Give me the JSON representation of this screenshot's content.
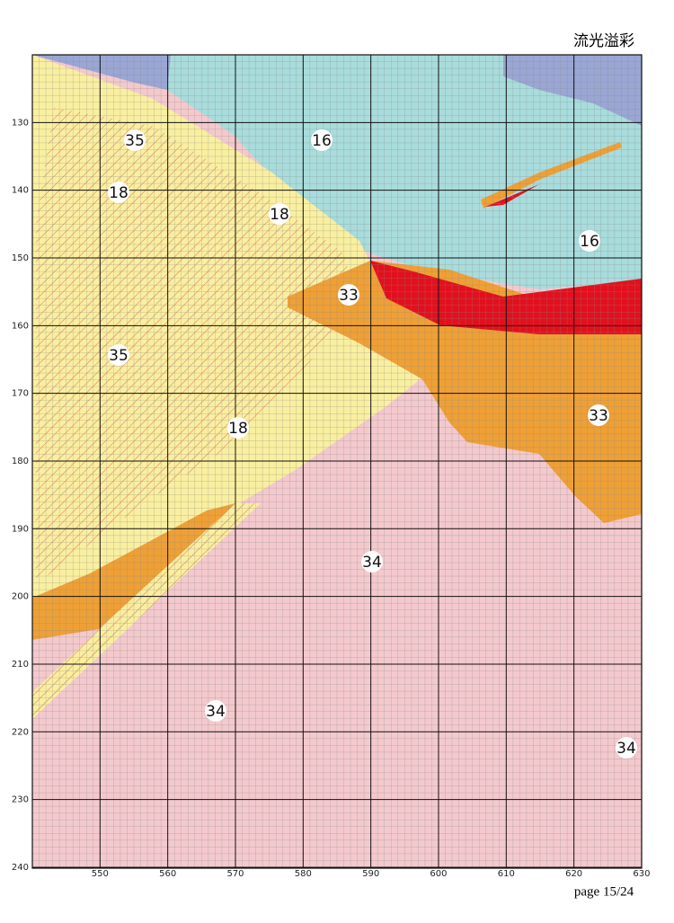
{
  "header": {
    "title": "流光溢彩"
  },
  "rows": [
    130,
    140,
    150,
    160,
    170,
    180,
    190,
    200,
    210,
    220,
    230,
    240
  ],
  "columns": [
    550,
    560,
    570,
    580,
    590,
    600,
    610,
    620,
    630
  ],
  "symbols": [
    "35",
    "16",
    "18",
    "18",
    "16",
    "33",
    "35",
    "18",
    "33",
    "34",
    "34",
    "34"
  ],
  "footer": {
    "page": "page 15/24"
  }
}
